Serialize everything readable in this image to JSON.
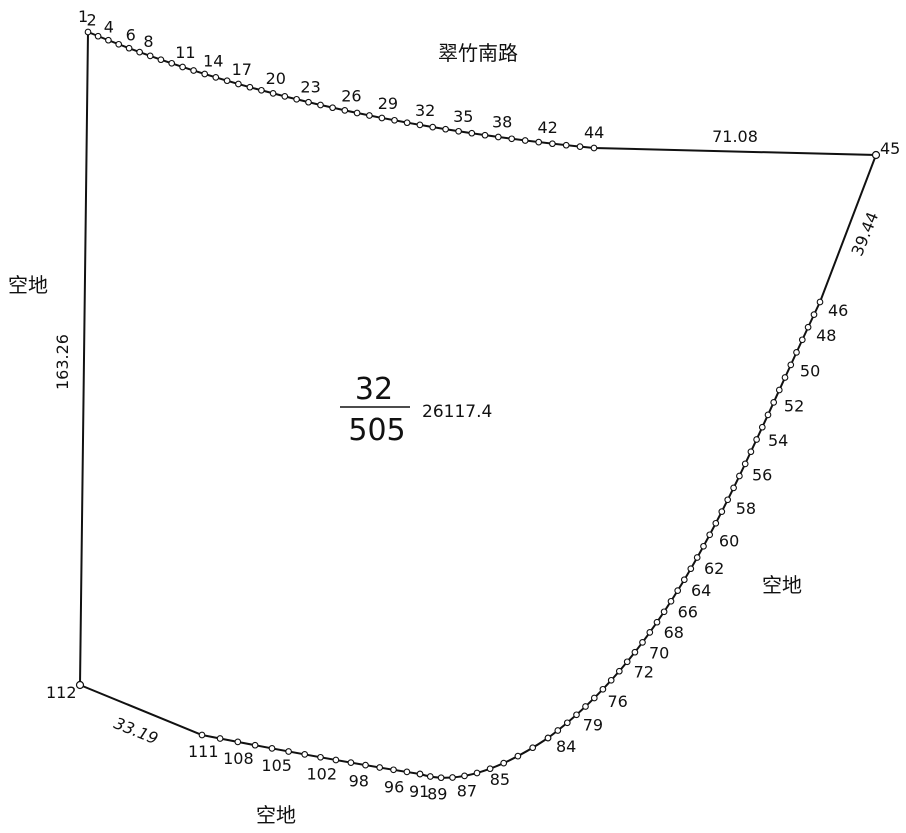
{
  "road_label": "翠竹南路",
  "vacant_labels": [
    "空地",
    "空地",
    "空地"
  ],
  "dimensions": {
    "top_right": "71.08",
    "right_upper": "39.44",
    "left": "163.26",
    "bottom_left": "33.19"
  },
  "parcel": {
    "numerator": "32",
    "denominator": "505",
    "area": "26117.4"
  },
  "top_points": [
    "1",
    "2",
    "4",
    "6",
    "8",
    "11",
    "14",
    "17",
    "20",
    "23",
    "26",
    "29",
    "32",
    "35",
    "38",
    "42",
    "44"
  ],
  "corner_labels": {
    "right": "45",
    "bottom_left": "112"
  },
  "right_points": [
    "46",
    "48",
    "50",
    "52",
    "54",
    "56",
    "58",
    "60",
    "62",
    "64",
    "66",
    "68",
    "70",
    "72",
    "76",
    "79",
    "84"
  ],
  "bottom_points": [
    "85",
    "87",
    "89",
    "91",
    "96",
    "98",
    "102",
    "105",
    "108",
    "111"
  ],
  "colors": {
    "line": "#111111",
    "background": "#ffffff"
  }
}
